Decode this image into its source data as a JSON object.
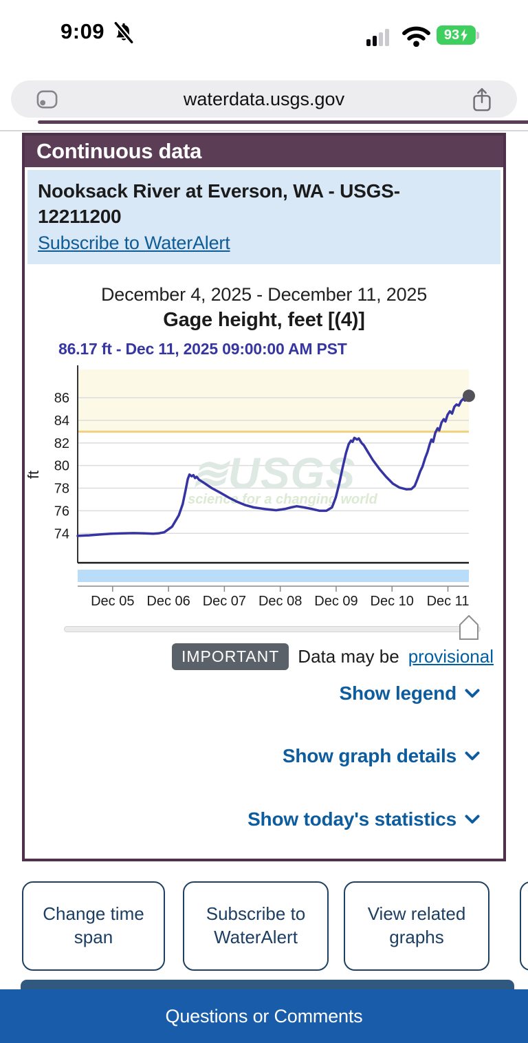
{
  "status_bar": {
    "time": "9:09",
    "battery_percent": "93"
  },
  "browser": {
    "url": "waterdata.usgs.gov"
  },
  "page": {
    "section_heading": "Continuous data"
  },
  "station": {
    "title": "Nooksack River at Everson, WA - USGS-12211200",
    "subscribe_link": "Subscribe to WaterAlert"
  },
  "graph_header": {
    "date_range": "December 4, 2025 - December 11, 2025",
    "parameter": "Gage height, feet [(4)]",
    "current_reading": "86.17 ft - Dec 11, 2025 09:00:00 AM PST"
  },
  "watermark": {
    "logo": "USGS",
    "tagline": "science for a changing world"
  },
  "notice": {
    "badge": "IMPORTANT",
    "text": "Data may be",
    "link": "provisional"
  },
  "toggles": [
    {
      "label": "Show legend"
    },
    {
      "label": "Show graph details"
    },
    {
      "label": "Show today's statistics"
    }
  ],
  "action_buttons": [
    {
      "label": "Change time span"
    },
    {
      "label": "Subscribe to WaterAlert"
    },
    {
      "label": "View related graphs"
    }
  ],
  "footer": {
    "label": "Questions or Comments"
  },
  "colors": {
    "header_purple": "#5b3d56",
    "card_border": "#4f314c",
    "info_box_blue": "#d9e8f6",
    "link_blue": "#005ea2",
    "toggle_blue": "#0d5c9e",
    "reading_indigo": "#3636a3",
    "footer_blue": "#195ca9",
    "battery_green": "#3ecf5e",
    "badge_gray": "#5b6169"
  },
  "chart_data": {
    "type": "line",
    "title": "Gage height, feet [(4)]",
    "subtitle": "December 4, 2025 - December 11, 2025",
    "latest_value_label": "86.17 ft - Dec 11, 2025 09:00:00 AM PST",
    "ylabel": "ft",
    "ylim": [
      71.4,
      88.5
    ],
    "yticks": [
      74,
      76,
      78,
      80,
      82,
      84,
      86
    ],
    "xlim": [
      0,
      7
    ],
    "xticks": [
      {
        "offset": 0.625,
        "label": "Dec 05"
      },
      {
        "offset": 1.625,
        "label": "Dec 06"
      },
      {
        "offset": 2.625,
        "label": "Dec 07"
      },
      {
        "offset": 3.625,
        "label": "Dec 08"
      },
      {
        "offset": 4.625,
        "label": "Dec 09"
      },
      {
        "offset": 5.625,
        "label": "Dec 10"
      },
      {
        "offset": 6.625,
        "label": "Dec 11"
      }
    ],
    "grid": true,
    "threshold": 83,
    "threshold_color": "#f0d27e",
    "shade_above_threshold_color": "#fdf9e7",
    "band_color": "#b9dcf8",
    "latest_point": [
      7.0,
      86.17
    ],
    "series": [
      {
        "name": "Gage height, feet",
        "color": "#3534a2",
        "points": [
          [
            0.0,
            73.78
          ],
          [
            0.2,
            73.83
          ],
          [
            0.4,
            73.9
          ],
          [
            0.6,
            73.97
          ],
          [
            0.8,
            74.0
          ],
          [
            1.0,
            74.02
          ],
          [
            1.2,
            74.0
          ],
          [
            1.35,
            73.97
          ],
          [
            1.44,
            74.0
          ],
          [
            1.55,
            74.1
          ],
          [
            1.69,
            74.6
          ],
          [
            1.81,
            75.6
          ],
          [
            1.88,
            76.6
          ],
          [
            1.93,
            77.8
          ],
          [
            1.97,
            78.8
          ],
          [
            2.0,
            79.2
          ],
          [
            2.04,
            79.05
          ],
          [
            2.07,
            79.15
          ],
          [
            2.1,
            78.9
          ],
          [
            2.13,
            79.0
          ],
          [
            2.17,
            78.75
          ],
          [
            2.25,
            78.5
          ],
          [
            2.4,
            78.0
          ],
          [
            2.55,
            77.6
          ],
          [
            2.71,
            77.15
          ],
          [
            2.85,
            76.8
          ],
          [
            3.0,
            76.5
          ],
          [
            3.15,
            76.3
          ],
          [
            3.35,
            76.15
          ],
          [
            3.55,
            76.05
          ],
          [
            3.7,
            76.15
          ],
          [
            3.82,
            76.3
          ],
          [
            3.92,
            76.4
          ],
          [
            4.05,
            76.3
          ],
          [
            4.2,
            76.15
          ],
          [
            4.33,
            76.0
          ],
          [
            4.45,
            76.0
          ],
          [
            4.55,
            76.3
          ],
          [
            4.62,
            77.2
          ],
          [
            4.68,
            78.4
          ],
          [
            4.74,
            79.8
          ],
          [
            4.8,
            81.1
          ],
          [
            4.85,
            81.9
          ],
          [
            4.89,
            82.2
          ],
          [
            4.92,
            82.1
          ],
          [
            4.95,
            82.45
          ],
          [
            5.0,
            82.3
          ],
          [
            5.03,
            82.4
          ],
          [
            5.08,
            82.0
          ],
          [
            5.12,
            81.8
          ],
          [
            5.18,
            81.3
          ],
          [
            5.28,
            80.5
          ],
          [
            5.4,
            79.7
          ],
          [
            5.52,
            79.0
          ],
          [
            5.64,
            78.4
          ],
          [
            5.76,
            78.05
          ],
          [
            5.88,
            77.9
          ],
          [
            5.97,
            77.92
          ],
          [
            6.03,
            78.2
          ],
          [
            6.08,
            78.8
          ],
          [
            6.13,
            79.5
          ],
          [
            6.17,
            79.9
          ],
          [
            6.22,
            80.7
          ],
          [
            6.26,
            81.2
          ],
          [
            6.3,
            81.9
          ],
          [
            6.33,
            82.3
          ],
          [
            6.36,
            82.1
          ],
          [
            6.4,
            82.9
          ],
          [
            6.44,
            83.3
          ],
          [
            6.47,
            83.1
          ],
          [
            6.51,
            83.8
          ],
          [
            6.55,
            84.1
          ],
          [
            6.58,
            83.9
          ],
          [
            6.62,
            84.5
          ],
          [
            6.66,
            84.8
          ],
          [
            6.7,
            84.6
          ],
          [
            6.74,
            85.2
          ],
          [
            6.78,
            85.4
          ],
          [
            6.82,
            85.3
          ],
          [
            6.86,
            85.7
          ],
          [
            6.9,
            85.9
          ],
          [
            6.93,
            85.75
          ],
          [
            6.96,
            86.1
          ],
          [
            7.0,
            86.17
          ]
        ]
      }
    ]
  }
}
